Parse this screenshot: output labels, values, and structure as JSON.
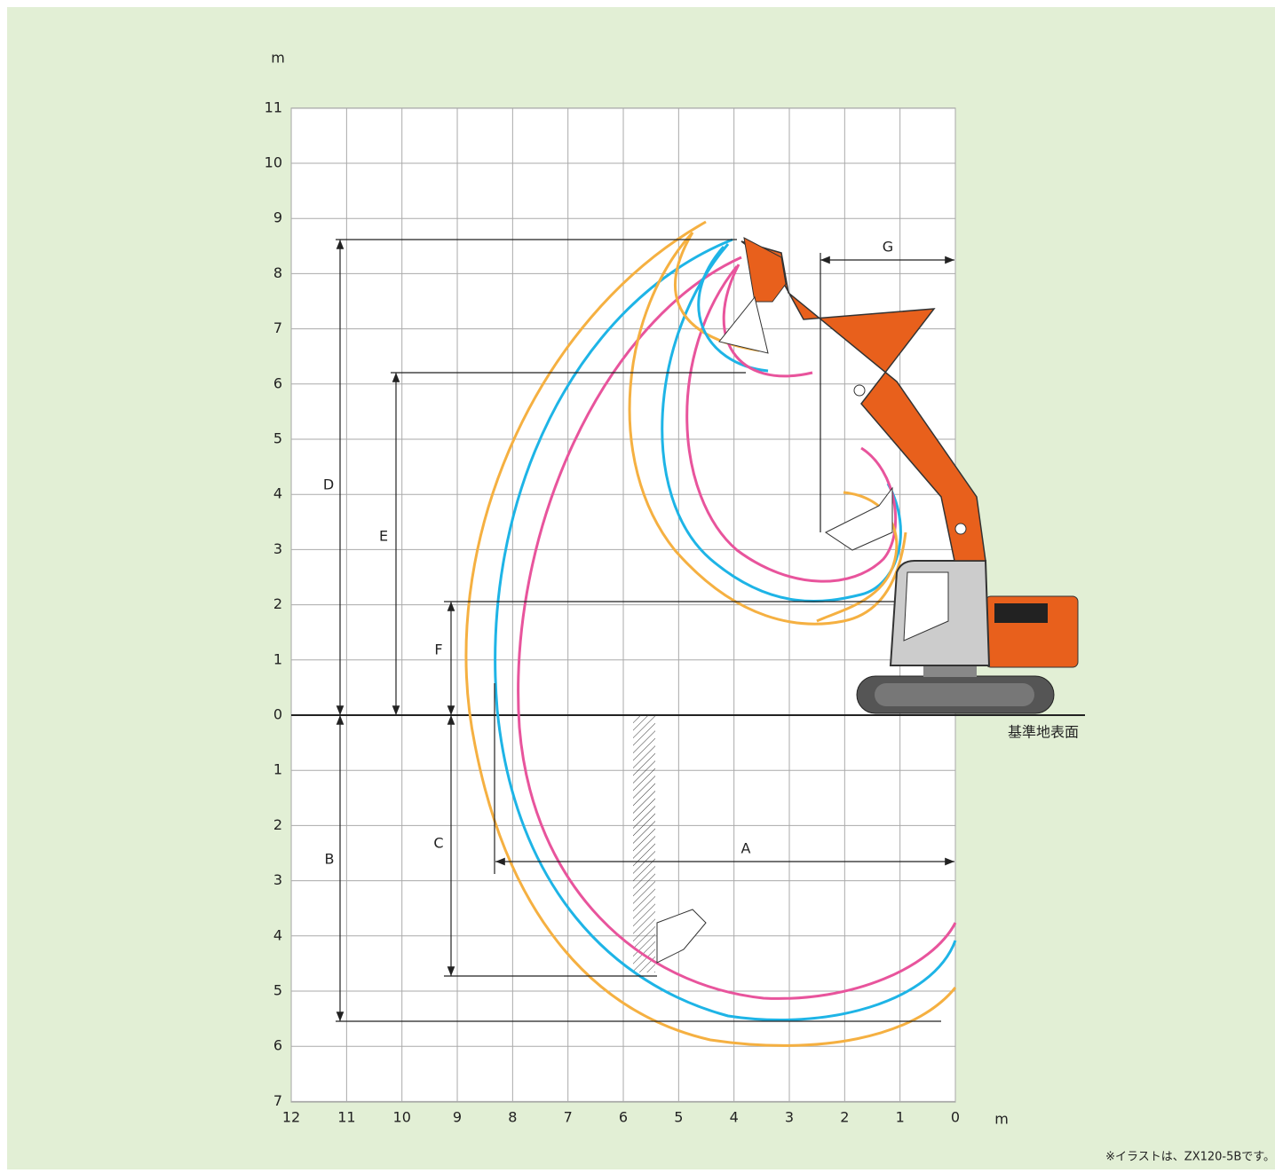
{
  "x_axis": {
    "unit": "m",
    "ticks": [
      12,
      11,
      10,
      9,
      8,
      7,
      6,
      5,
      4,
      3,
      2,
      1,
      0
    ]
  },
  "y_axis": {
    "unit": "m",
    "ticks_above": [
      0,
      1,
      2,
      3,
      4,
      5,
      6,
      7,
      8,
      9,
      10,
      11
    ],
    "ticks_below": [
      1,
      2,
      3,
      4,
      5,
      6,
      7
    ]
  },
  "dimensions": {
    "A": "A",
    "B": "B",
    "C": "C",
    "D": "D",
    "E": "E",
    "F": "F",
    "G": "G"
  },
  "ground_label": "基準地表面",
  "footnote": "※イラストは、ZX120-5Bです。"
}
